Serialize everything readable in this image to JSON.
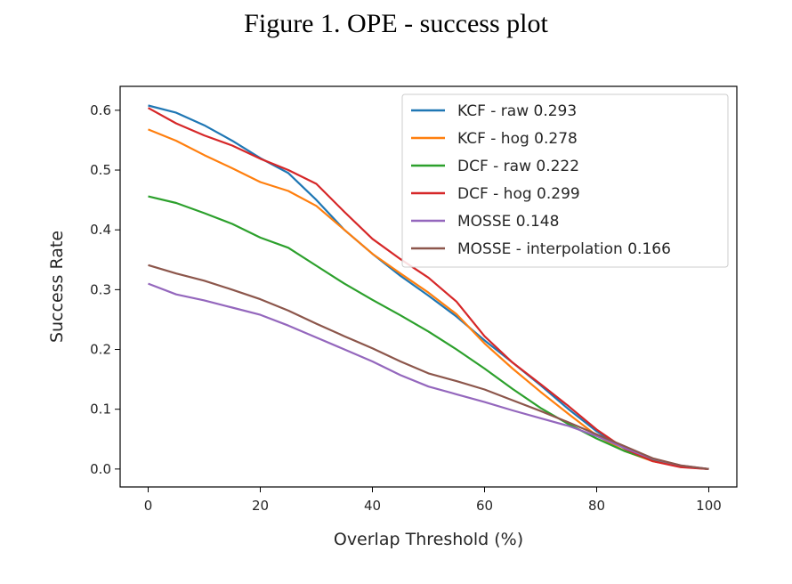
{
  "figure": {
    "caption": "Figure 1. OPE - success plot"
  },
  "chart_data": {
    "type": "line",
    "title": "",
    "xlabel": "Overlap Threshold (%)",
    "ylabel": "Success Rate",
    "xlim": [
      -5,
      105
    ],
    "ylim": [
      -0.03,
      0.64
    ],
    "xticks": [
      0,
      20,
      40,
      60,
      80,
      100
    ],
    "yticks": [
      0.0,
      0.1,
      0.2,
      0.3,
      0.4,
      0.5,
      0.6
    ],
    "xtick_labels": [
      "0",
      "20",
      "40",
      "60",
      "80",
      "100"
    ],
    "ytick_labels": [
      "0.0",
      "0.1",
      "0.2",
      "0.3",
      "0.4",
      "0.5",
      "0.6"
    ],
    "grid": false,
    "legend_position": "top-right",
    "x": [
      0,
      5,
      10,
      15,
      20,
      25,
      30,
      35,
      40,
      45,
      50,
      55,
      60,
      65,
      70,
      75,
      80,
      85,
      90,
      95,
      100
    ],
    "series": [
      {
        "name": "KCF - raw 0.293",
        "color": "#1f77b4",
        "values": [
          0.608,
          0.596,
          0.575,
          0.549,
          0.52,
          0.495,
          0.45,
          0.4,
          0.36,
          0.323,
          0.29,
          0.255,
          0.215,
          0.178,
          0.14,
          0.1,
          0.063,
          0.034,
          0.015,
          0.005,
          0.0
        ]
      },
      {
        "name": "KCF - hog 0.278",
        "color": "#ff7f0e",
        "values": [
          0.568,
          0.549,
          0.525,
          0.503,
          0.48,
          0.465,
          0.44,
          0.4,
          0.36,
          0.327,
          0.295,
          0.259,
          0.21,
          0.168,
          0.129,
          0.092,
          0.056,
          0.03,
          0.013,
          0.004,
          0.0
        ]
      },
      {
        "name": "DCF - raw 0.222",
        "color": "#2ca02c",
        "values": [
          0.456,
          0.445,
          0.428,
          0.41,
          0.387,
          0.37,
          0.34,
          0.31,
          0.283,
          0.257,
          0.23,
          0.2,
          0.168,
          0.134,
          0.102,
          0.075,
          0.051,
          0.03,
          0.014,
          0.005,
          0.0
        ]
      },
      {
        "name": "DCF - hog 0.299",
        "color": "#d62728",
        "values": [
          0.604,
          0.578,
          0.558,
          0.541,
          0.519,
          0.5,
          0.477,
          0.43,
          0.385,
          0.351,
          0.32,
          0.28,
          0.222,
          0.178,
          0.142,
          0.105,
          0.066,
          0.034,
          0.013,
          0.003,
          0.0
        ]
      },
      {
        "name": "MOSSE 0.148",
        "color": "#9467bd",
        "values": [
          0.31,
          0.292,
          0.282,
          0.27,
          0.258,
          0.24,
          0.22,
          0.2,
          0.18,
          0.157,
          0.138,
          0.125,
          0.112,
          0.098,
          0.085,
          0.072,
          0.055,
          0.035,
          0.017,
          0.006,
          0.0
        ]
      },
      {
        "name": "MOSSE - interpolation 0.166",
        "color": "#8c564b",
        "values": [
          0.341,
          0.327,
          0.315,
          0.3,
          0.284,
          0.265,
          0.243,
          0.222,
          0.202,
          0.18,
          0.16,
          0.147,
          0.133,
          0.115,
          0.097,
          0.078,
          0.058,
          0.038,
          0.018,
          0.006,
          0.0
        ]
      }
    ]
  }
}
